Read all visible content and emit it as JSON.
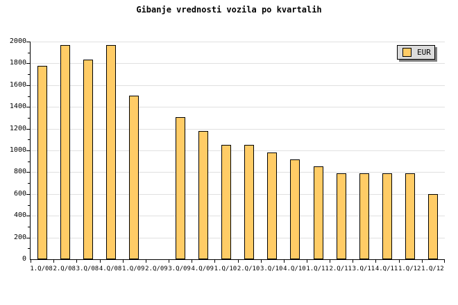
{
  "title": "Gibanje vrednosti vozila po kvartalih",
  "legend": {
    "label": "EUR"
  },
  "colors": {
    "background": "#FFFFFF",
    "bar_fill": "#FFCC66",
    "bar_border": "#000000",
    "gridline": "#E0E0E0",
    "axis": "#000000",
    "text": "#000000",
    "legend_bg": "#DCDCDC",
    "legend_shadow": "#808080"
  },
  "chart_data": {
    "type": "bar",
    "title": "Gibanje vrednosti vozila po kvartalih",
    "categories": [
      "1.Q/08",
      "2.Q/08",
      "3.Q/08",
      "4.Q/08",
      "1.Q/09",
      "2.Q/09",
      "3.Q/09",
      "4.Q/09",
      "1.Q/10",
      "2.Q/10",
      "3.Q/10",
      "4.Q/10",
      "1.Q/11",
      "2.Q/11",
      "3.Q/11",
      "4.Q/11",
      "1.Q/12",
      "1.Q/12"
    ],
    "series": [
      {
        "name": "EUR",
        "values": [
          1775,
          1970,
          1835,
          1970,
          1505,
          null,
          1305,
          1180,
          1050,
          1050,
          980,
          920,
          855,
          790,
          790,
          790,
          790,
          600
        ]
      }
    ],
    "xlabel": "",
    "ylabel": "",
    "ylim": [
      0,
      2000
    ],
    "y_major_step": 200,
    "y_minor_step": 100,
    "y_tick_labels": [
      "0",
      "200",
      "400",
      "600",
      "800",
      "1000",
      "1200",
      "1400",
      "1600",
      "1800",
      "2000"
    ],
    "grid": "horizontal",
    "legend_position": "top-right",
    "missing_categories": [
      "2.Q/09"
    ]
  }
}
